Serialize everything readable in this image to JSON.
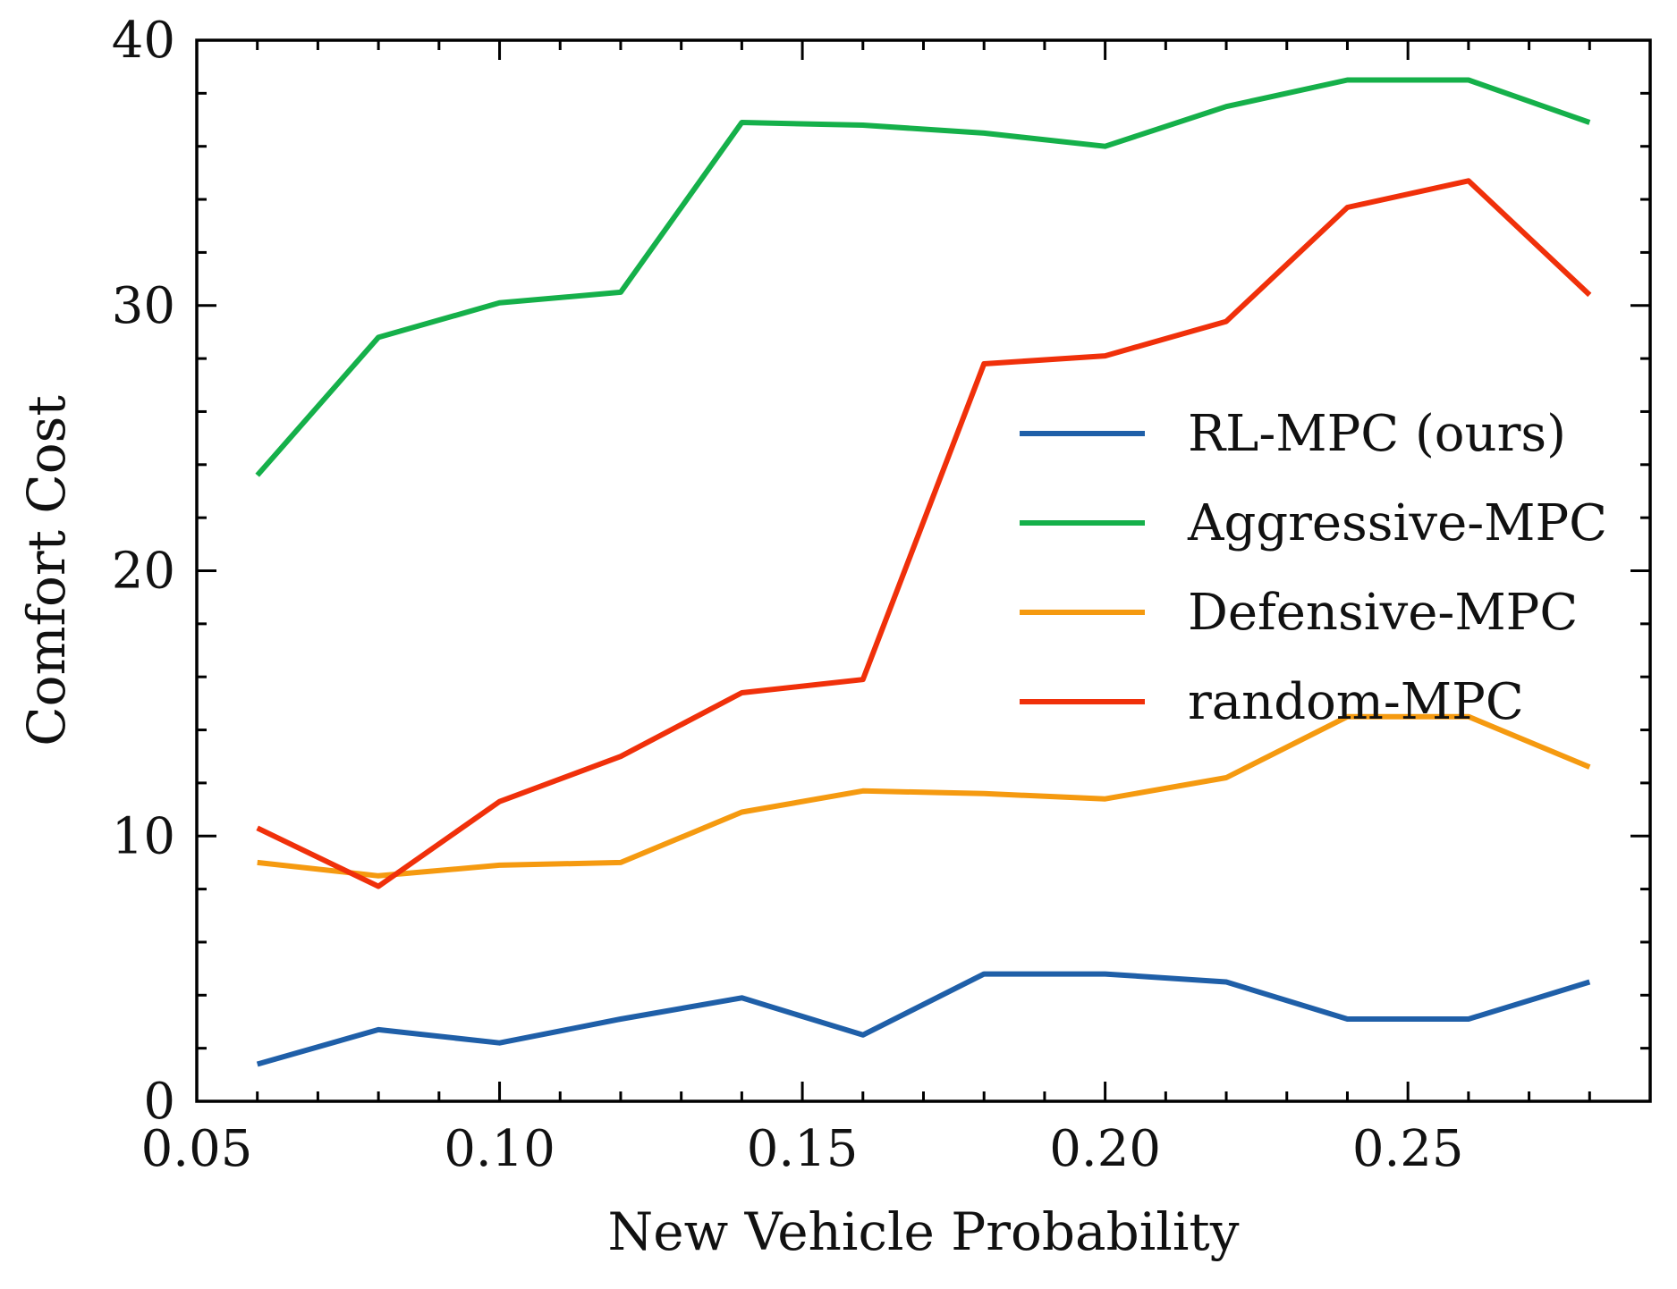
{
  "chart_data": {
    "type": "line",
    "title": "",
    "xlabel": "New Vehicle Probability",
    "ylabel": "Comfort Cost",
    "x": [
      0.06,
      0.08,
      0.1,
      0.12,
      0.14,
      0.16,
      0.18,
      0.2,
      0.22,
      0.24,
      0.26,
      0.28
    ],
    "xlim": [
      0.05,
      0.29
    ],
    "ylim": [
      0,
      40
    ],
    "xticks": [
      0.05,
      0.1,
      0.15,
      0.2,
      0.25
    ],
    "xtick_labels": [
      "0.05",
      "0.10",
      "0.15",
      "0.20",
      "0.25"
    ],
    "yticks": [
      0,
      10,
      20,
      30,
      40
    ],
    "ytick_labels": [
      "0",
      "10",
      "20",
      "30",
      "40"
    ],
    "grid": false,
    "legend_position": "center-right",
    "series": [
      {
        "name": "RL-MPC (ours)",
        "color": "#1f5fa8",
        "values": [
          1.4,
          2.7,
          2.2,
          3.1,
          3.9,
          2.5,
          4.8,
          4.8,
          4.5,
          3.1,
          3.1,
          4.5
        ]
      },
      {
        "name": "Aggressive-MPC",
        "color": "#15b04a",
        "values": [
          23.6,
          28.8,
          30.1,
          30.5,
          36.9,
          36.8,
          36.5,
          36.0,
          37.5,
          38.5,
          38.5,
          36.9
        ]
      },
      {
        "name": "Defensive-MPC",
        "color": "#f59a10",
        "values": [
          9.0,
          8.5,
          8.9,
          9.0,
          10.9,
          11.7,
          11.6,
          11.4,
          12.2,
          14.5,
          14.5,
          12.6
        ]
      },
      {
        "name": "random-MPC",
        "color": "#f0300a",
        "values": [
          10.3,
          8.1,
          11.3,
          13.0,
          15.4,
          15.9,
          27.8,
          28.1,
          29.4,
          33.7,
          34.7,
          30.4
        ]
      }
    ]
  }
}
